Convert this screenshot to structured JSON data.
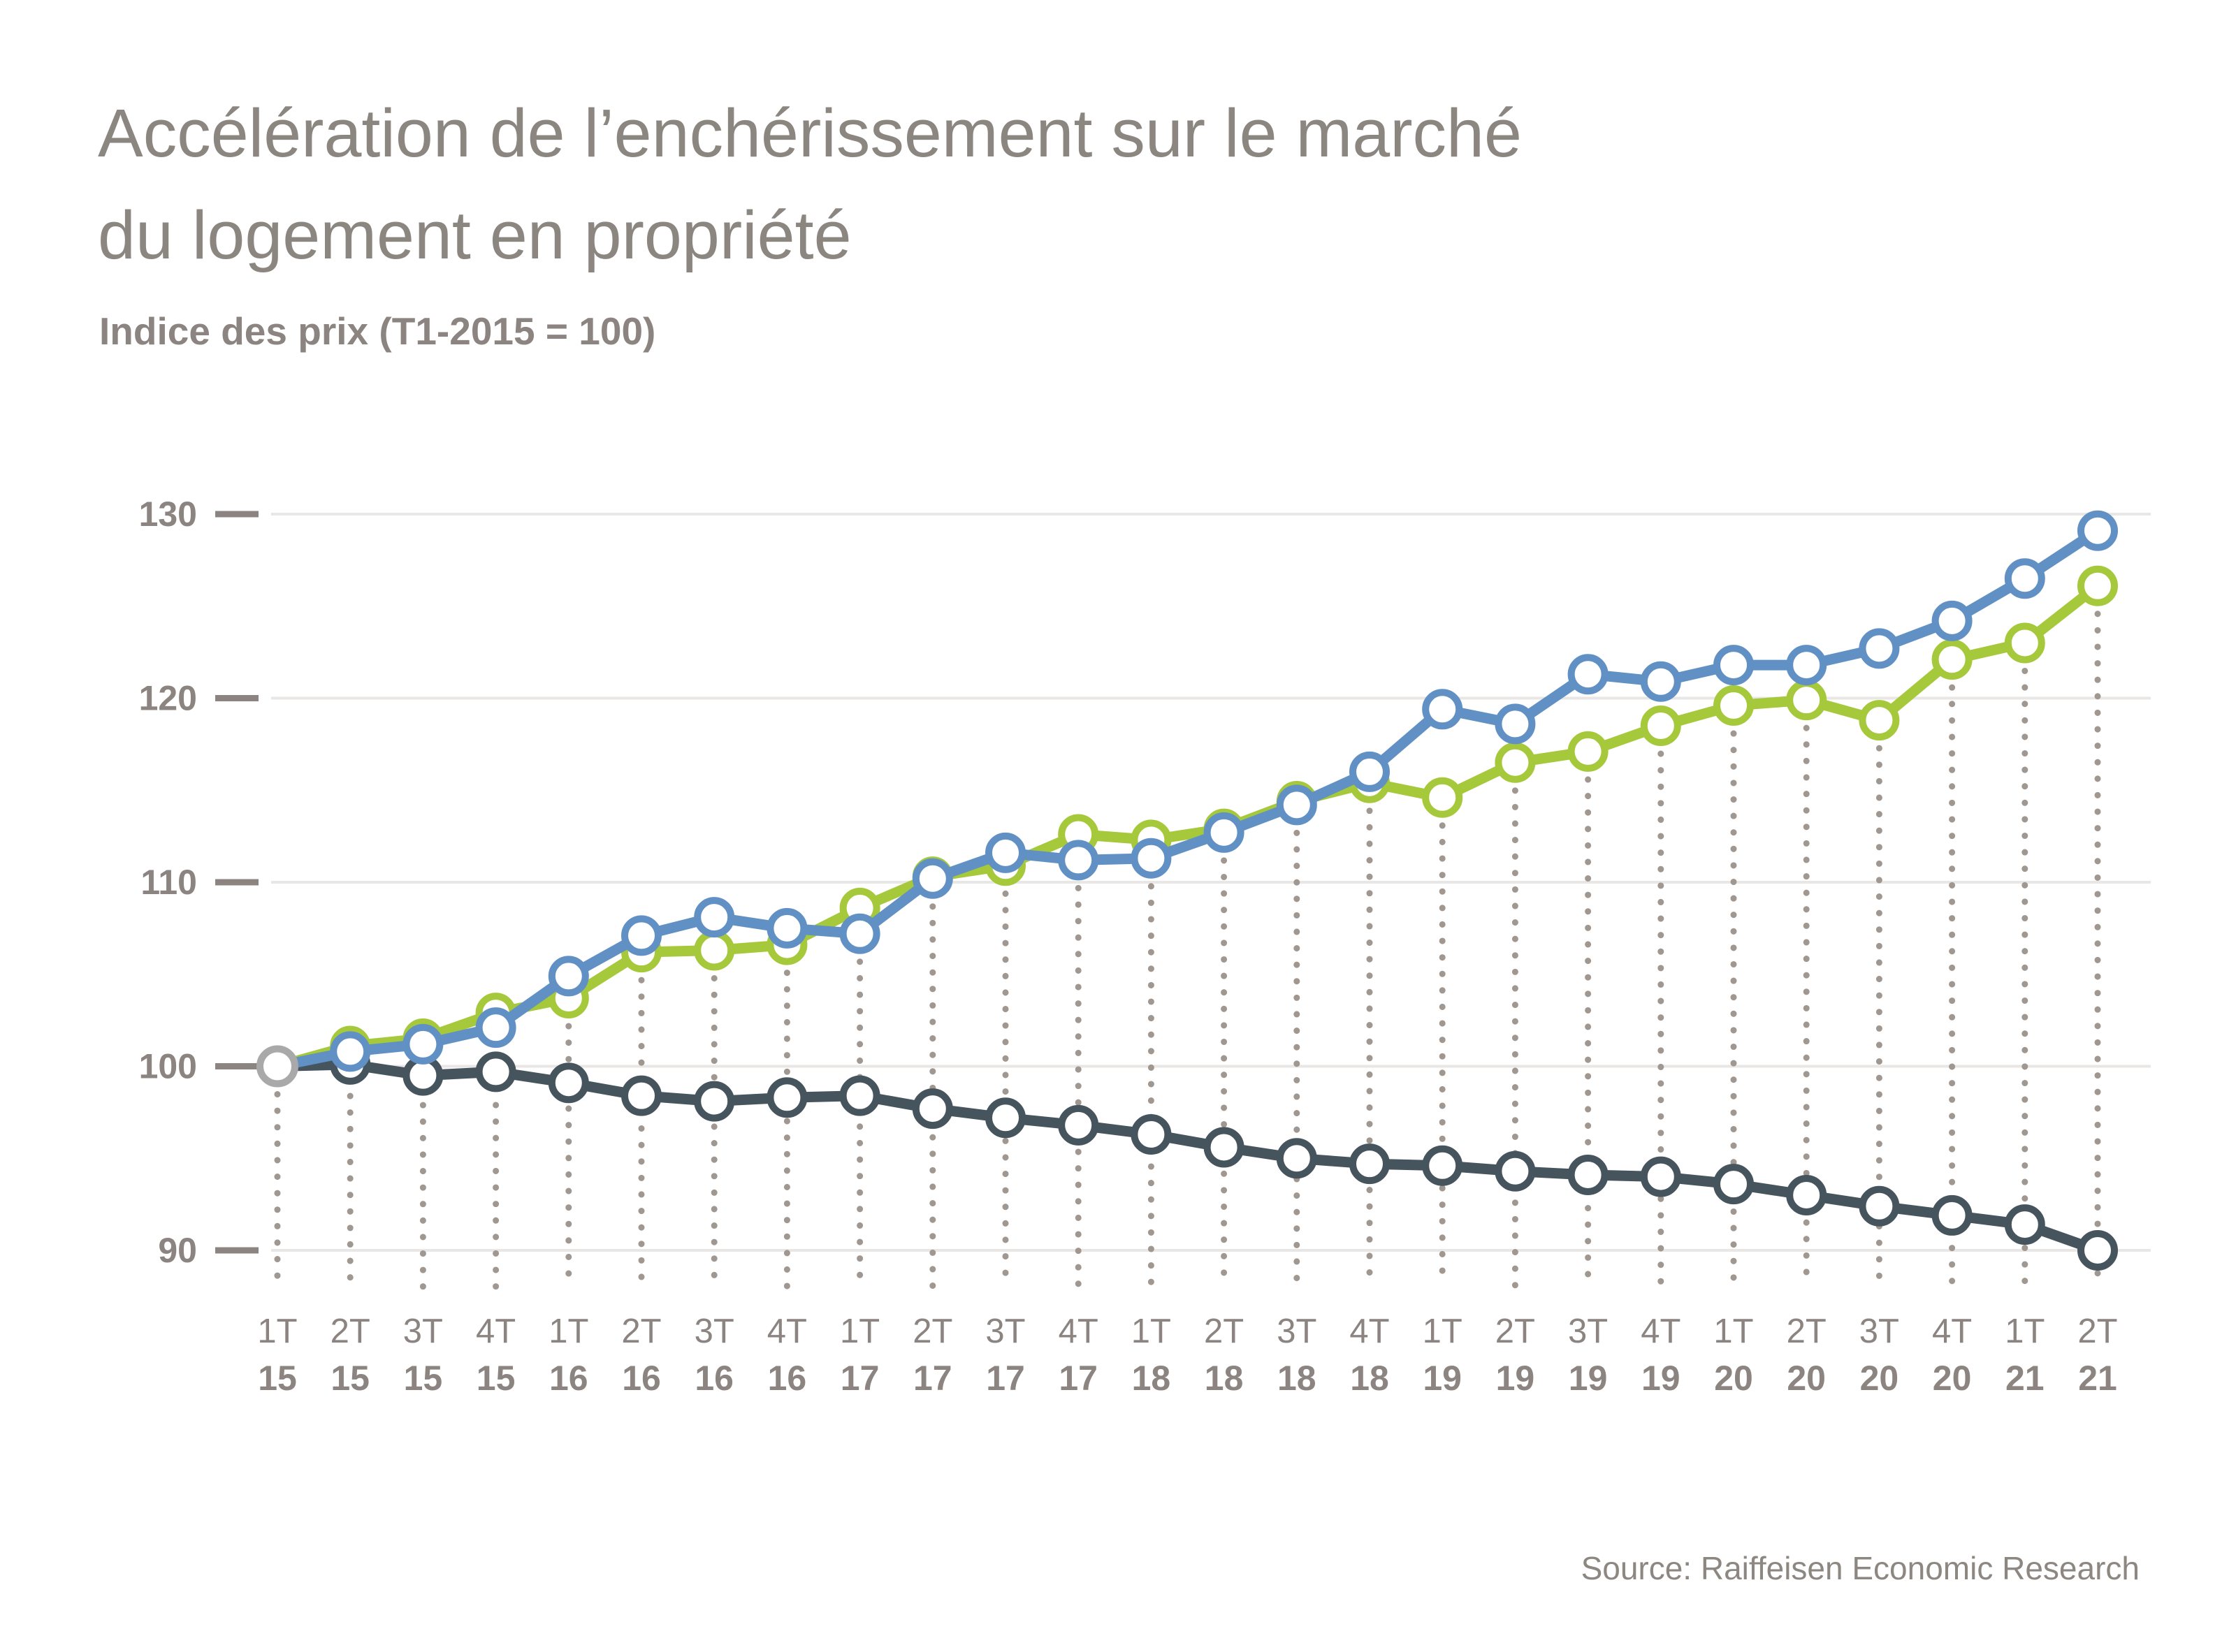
{
  "title": {
    "line1": "Accélération de l’enchérissement sur le marché",
    "line2": "du logement en propriété"
  },
  "subtitle": "Indice des prix (T1-2015 = 100)",
  "source": "Source: Raiffeisen Economic Research",
  "chart_data": {
    "type": "line",
    "title": "Indice des prix (T1-2015 = 100)",
    "xlabel": "",
    "ylabel": "",
    "ylim": [
      87,
      133
    ],
    "y_ticks": [
      130,
      120,
      110,
      100,
      90
    ],
    "grid": "horizontal-light",
    "legend_position": "none",
    "x_quarters": [
      "1T",
      "2T",
      "3T",
      "4T",
      "1T",
      "2T",
      "3T",
      "4T",
      "1T",
      "2T",
      "3T",
      "4T",
      "1T",
      "2T",
      "3T",
      "4T",
      "1T",
      "2T",
      "3T",
      "4T",
      "1T",
      "2T",
      "3T",
      "4T",
      "1T",
      "2T"
    ],
    "x_years": [
      "15",
      "15",
      "15",
      "15",
      "16",
      "16",
      "16",
      "16",
      "17",
      "17",
      "17",
      "17",
      "18",
      "18",
      "18",
      "18",
      "19",
      "19",
      "19",
      "19",
      "20",
      "20",
      "20",
      "20",
      "21",
      "21"
    ],
    "series": [
      {
        "name": "dark-series",
        "color": "#46545e",
        "values": [
          100,
          100.1,
          99.5,
          99.7,
          99.1,
          98.4,
          98.1,
          98.3,
          98.4,
          97.7,
          97.2,
          96.8,
          96.3,
          95.6,
          95.0,
          94.7,
          94.6,
          94.3,
          94.1,
          94.0,
          93.6,
          93.0,
          92.4,
          91.9,
          91.4,
          90.0
        ]
      },
      {
        "name": "green-series",
        "color": "#a5c93a",
        "values": [
          100,
          101.1,
          101.5,
          102.9,
          103.7,
          106.2,
          106.3,
          106.6,
          108.6,
          110.3,
          110.9,
          112.6,
          112.3,
          112.9,
          114.4,
          115.4,
          114.6,
          116.5,
          117.1,
          118.5,
          119.6,
          119.9,
          118.8,
          122.1,
          123.0,
          126.1
        ]
      },
      {
        "name": "blue-series",
        "color": "#6191c4",
        "values": [
          100,
          100.8,
          101.2,
          102.1,
          104.9,
          107.1,
          108.1,
          107.5,
          107.2,
          110.2,
          111.6,
          111.2,
          111.3,
          112.7,
          114.2,
          116.0,
          119.4,
          118.6,
          121.3,
          120.9,
          121.8,
          121.8,
          122.7,
          124.2,
          126.5,
          129.1
        ]
      }
    ],
    "start_marker": {
      "label": "1T 15 = 100",
      "color": "#a9a9a9"
    }
  },
  "colors": {
    "axis_text": "#8b8480",
    "gridline": "#e9e7e5",
    "guide_dots": "#a09890",
    "tick_dash": "#8b8480",
    "background": "#ffffff",
    "marker_fill": "#ffffff"
  }
}
